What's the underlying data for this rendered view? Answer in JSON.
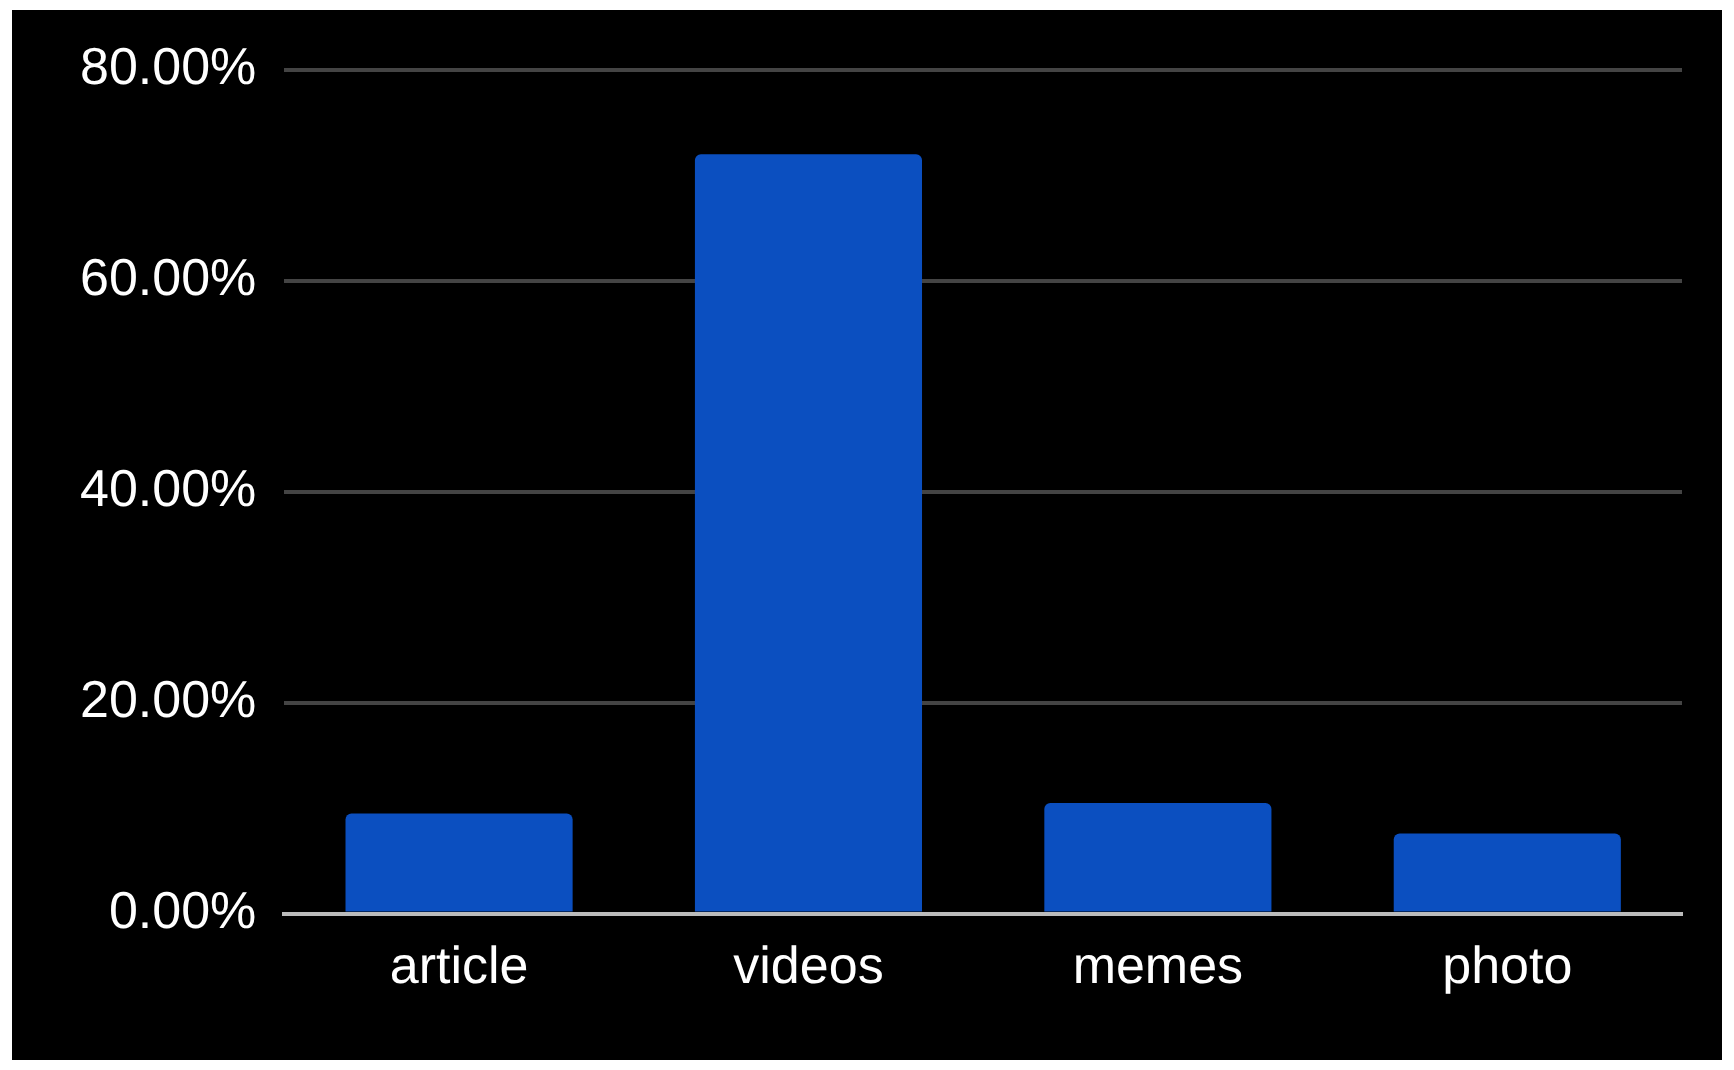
{
  "chart_data": {
    "type": "bar",
    "categories": [
      "article",
      "videos",
      "memes",
      "photo"
    ],
    "values": [
      9.5,
      72.0,
      10.5,
      7.6
    ],
    "color": "#0b4fc0",
    "ylim": [
      0,
      80
    ],
    "yticks": [
      {
        "value": 0,
        "label": "0.00%"
      },
      {
        "value": 20,
        "label": "20.00%"
      },
      {
        "value": 40,
        "label": "40.00%"
      },
      {
        "value": 60,
        "label": "60.00%"
      },
      {
        "value": 80,
        "label": "80.00%"
      }
    ],
    "grid": "y"
  }
}
